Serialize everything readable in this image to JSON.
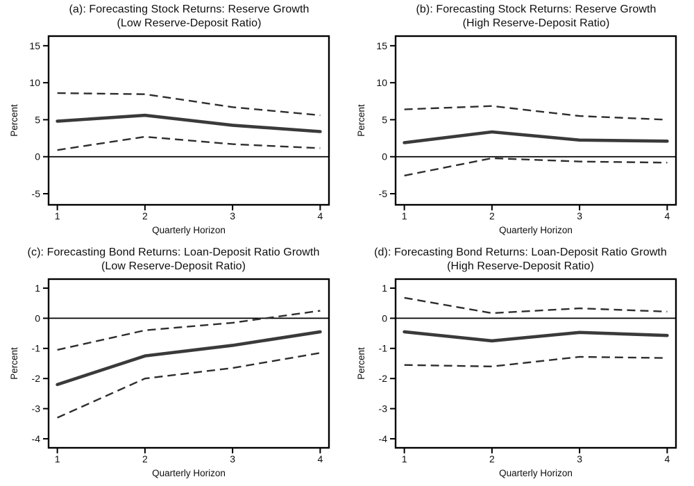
{
  "figure": {
    "description": "Four-panel line chart figure: forecasting stock and bond returns with confidence bands",
    "xlabel": "Quarterly Horizon",
    "ylabel": "Percent"
  },
  "colors": {
    "solid_line": "#3a3a3a",
    "dashed_line": "#2d2d2d",
    "frame": "#000000",
    "zero_line": "#000000",
    "text": "#0e0e0e",
    "background": "#ffffff"
  },
  "chart_data": [
    {
      "type": "line",
      "panel_label": "a",
      "title_line1": "(a): Forecasting Stock Returns: Reserve Growth",
      "title_line2": "(Low Reserve-Deposit Ratio)",
      "xlabel": "Quarterly Horizon",
      "ylabel": "Percent",
      "x": [
        1,
        2,
        3,
        4
      ],
      "xticks": [
        1,
        2,
        3,
        4
      ],
      "yticks": [
        15,
        10,
        5,
        0,
        -5
      ],
      "xlim": [
        0.9,
        4.1
      ],
      "ylim": [
        -6.5,
        16.3
      ],
      "zero_line": true,
      "grid": false,
      "legend": "none",
      "series": [
        {
          "name": "upper confidence band",
          "style": "dashed",
          "values": [
            8.6,
            8.45,
            6.7,
            5.6
          ]
        },
        {
          "name": "lower confidence band",
          "style": "dashed",
          "values": [
            0.9,
            2.7,
            1.7,
            1.15
          ]
        },
        {
          "name": "point estimate",
          "style": "solid",
          "values": [
            4.8,
            5.6,
            4.25,
            3.4
          ]
        }
      ]
    },
    {
      "type": "line",
      "panel_label": "b",
      "title_line1": "(b): Forecasting Stock Returns: Reserve Growth",
      "title_line2": "(High Reserve-Deposit Ratio)",
      "xlabel": "Quarterly Horizon",
      "ylabel": "Percent",
      "x": [
        1,
        2,
        3,
        4
      ],
      "xticks": [
        1,
        2,
        3,
        4
      ],
      "yticks": [
        15,
        10,
        5,
        0,
        -5
      ],
      "xlim": [
        0.9,
        4.1
      ],
      "ylim": [
        -6.5,
        16.3
      ],
      "zero_line": true,
      "grid": false,
      "legend": "none",
      "series": [
        {
          "name": "upper confidence band",
          "style": "dashed",
          "values": [
            6.4,
            6.85,
            5.5,
            5.0
          ]
        },
        {
          "name": "lower confidence band",
          "style": "dashed",
          "values": [
            -2.55,
            -0.2,
            -0.65,
            -0.8
          ]
        },
        {
          "name": "point estimate",
          "style": "solid",
          "values": [
            1.9,
            3.35,
            2.25,
            2.1
          ]
        }
      ]
    },
    {
      "type": "line",
      "panel_label": "c",
      "title_line1": "(c): Forecasting Bond Returns: Loan-Deposit Ratio Growth",
      "title_line2": "(Low Reserve-Deposit Ratio)",
      "xlabel": "Quarterly Horizon",
      "ylabel": "Percent",
      "x": [
        1,
        2,
        3,
        4
      ],
      "xticks": [
        1,
        2,
        3,
        4
      ],
      "yticks": [
        1,
        0,
        -1,
        -2,
        -3,
        -4
      ],
      "xlim": [
        0.9,
        4.1
      ],
      "ylim": [
        -4.3,
        1.3
      ],
      "zero_line": true,
      "grid": false,
      "legend": "none",
      "series": [
        {
          "name": "upper confidence band",
          "style": "dashed",
          "values": [
            -1.05,
            -0.4,
            -0.15,
            0.25
          ]
        },
        {
          "name": "lower confidence band",
          "style": "dashed",
          "values": [
            -3.3,
            -2.0,
            -1.65,
            -1.15
          ]
        },
        {
          "name": "point estimate",
          "style": "solid",
          "values": [
            -2.2,
            -1.25,
            -0.9,
            -0.45
          ]
        }
      ]
    },
    {
      "type": "line",
      "panel_label": "d",
      "title_line1": "(d): Forecasting Bond Returns: Loan-Deposit Ratio Growth",
      "title_line2": "(High Reserve-Deposit Ratio)",
      "xlabel": "Quarterly Horizon",
      "ylabel": "Percent",
      "x": [
        1,
        2,
        3,
        4
      ],
      "xticks": [
        1,
        2,
        3,
        4
      ],
      "yticks": [
        1,
        0,
        -1,
        -2,
        -3,
        -4
      ],
      "xlim": [
        0.9,
        4.1
      ],
      "ylim": [
        -4.3,
        1.3
      ],
      "zero_line": true,
      "grid": false,
      "legend": "none",
      "series": [
        {
          "name": "upper confidence band",
          "style": "dashed",
          "values": [
            0.68,
            0.17,
            0.33,
            0.22
          ]
        },
        {
          "name": "lower confidence band",
          "style": "dashed",
          "values": [
            -1.55,
            -1.6,
            -1.28,
            -1.32
          ]
        },
        {
          "name": "point estimate",
          "style": "solid",
          "values": [
            -0.45,
            -0.75,
            -0.47,
            -0.57
          ]
        }
      ]
    }
  ]
}
